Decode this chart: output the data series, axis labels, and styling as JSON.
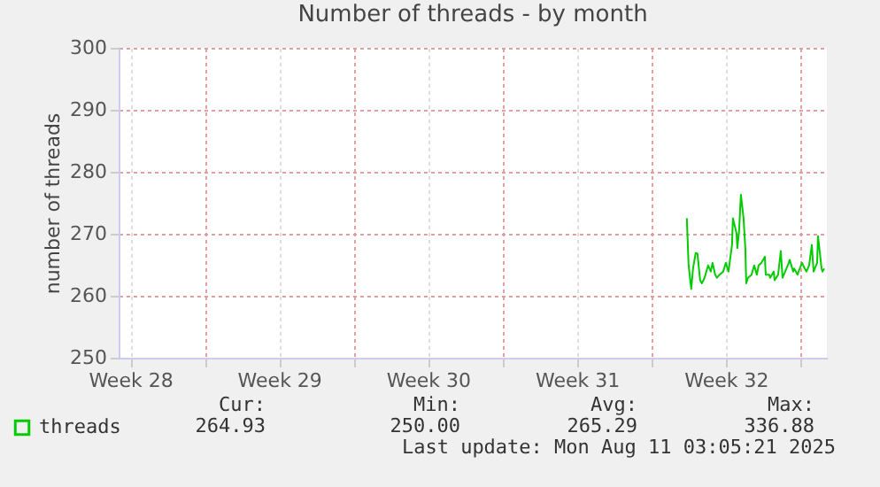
{
  "chart_data": {
    "type": "line",
    "title": "Number of threads - by month",
    "ylabel": "number of threads",
    "x": [
      "2025-08-05T16:00",
      "2025-08-05T18:00",
      "2025-08-05T21:00",
      "2025-08-05T23:00",
      "2025-08-06T02:00",
      "2025-08-06T04:00",
      "2025-08-06T07:00",
      "2025-08-06T09:00",
      "2025-08-06T12:00",
      "2025-08-06T16:00",
      "2025-08-06T19:00",
      "2025-08-06T21:00",
      "2025-08-07T00:00",
      "2025-08-07T02:00",
      "2025-08-07T05:00",
      "2025-08-07T09:00",
      "2025-08-07T12:00",
      "2025-08-07T15:00",
      "2025-08-07T19:00",
      "2025-08-07T20:00",
      "2025-08-08T00:00",
      "2025-08-08T01:00",
      "2025-08-08T03:00",
      "2025-08-08T05:00",
      "2025-08-08T08:00",
      "2025-08-08T10:00",
      "2025-08-08T11:00",
      "2025-08-08T13:00",
      "2025-08-08T17:00",
      "2025-08-08T20:00",
      "2025-08-08T23:00",
      "2025-08-09T01:00",
      "2025-08-09T04:00",
      "2025-08-09T08:00",
      "2025-08-09T09:00",
      "2025-08-09T13:00",
      "2025-08-09T14:00",
      "2025-08-09T18:00",
      "2025-08-09T19:00",
      "2025-08-09T23:00",
      "2025-08-10T02:00",
      "2025-08-10T04:00",
      "2025-08-10T07:00",
      "2025-08-10T11:00",
      "2025-08-10T12:00",
      "2025-08-10T16:00",
      "2025-08-10T17:00",
      "2025-08-10T21:00",
      "2025-08-10T22:00",
      "2025-08-11T02:00",
      "2025-08-11T05:00",
      "2025-08-11T07:00",
      "2025-08-11T10:00",
      "2025-08-11T13:00",
      "2025-08-11T15:00",
      "2025-08-11T19:00",
      "2025-08-11T20:00",
      "2025-08-12T00:00",
      "2025-08-12T01:00",
      "2025-08-12T03:00"
    ],
    "series": [
      {
        "name": "threads",
        "color": "#00cc00",
        "values": [
          272.5,
          264.9,
          261.1,
          264.4,
          266.9,
          266.8,
          262.5,
          262,
          262.9,
          264.9,
          263.9,
          265.3,
          263.4,
          262.9,
          263.4,
          263.9,
          265.3,
          263.9,
          268.2,
          272.5,
          270.1,
          267.7,
          270.6,
          276.3,
          272.5,
          267.7,
          262,
          262.9,
          263.4,
          264.9,
          263.4,
          264.9,
          265.3,
          266.3,
          263.4,
          263.4,
          262.9,
          263.9,
          262.5,
          263.4,
          267.2,
          262.9,
          263.9,
          265.3,
          265.8,
          263.9,
          264.4,
          263.4,
          263.9,
          265.3,
          264.4,
          263.9,
          264.9,
          268.2,
          263.9,
          265.3,
          269.6,
          264.4,
          263.9,
          264.4
        ]
      }
    ],
    "xlim": [
      "2025-07-09T23:00",
      "2025-08-12T06:00"
    ],
    "xticks": [
      {
        "value": "2025-07-10T12:00",
        "label": "Week 28"
      },
      {
        "value": "2025-07-14",
        "label": null
      },
      {
        "value": "2025-07-17T12:00",
        "label": "Week 29"
      },
      {
        "value": "2025-07-21",
        "label": null
      },
      {
        "value": "2025-07-24T12:00",
        "label": "Week 30"
      },
      {
        "value": "2025-07-28",
        "label": null
      },
      {
        "value": "2025-07-31T12:00",
        "label": "Week 31"
      },
      {
        "value": "2025-08-04",
        "label": null
      },
      {
        "value": "2025-08-07T12:00",
        "label": "Week 32"
      },
      {
        "value": "2025-08-11",
        "label": null
      }
    ],
    "ylim": [
      250,
      300
    ],
    "yticks": [
      250,
      260,
      270,
      280,
      290,
      300
    ],
    "grid": true,
    "legend": "bottom left",
    "line_style": "solid",
    "marker": "none",
    "annotations": [
      "Cur:",
      "264.93",
      "Min:",
      "250.00",
      "Avg:",
      "265.29",
      "Max:",
      "336.88",
      "Last update: Mon Aug 11 03:05:21 2025"
    ]
  }
}
